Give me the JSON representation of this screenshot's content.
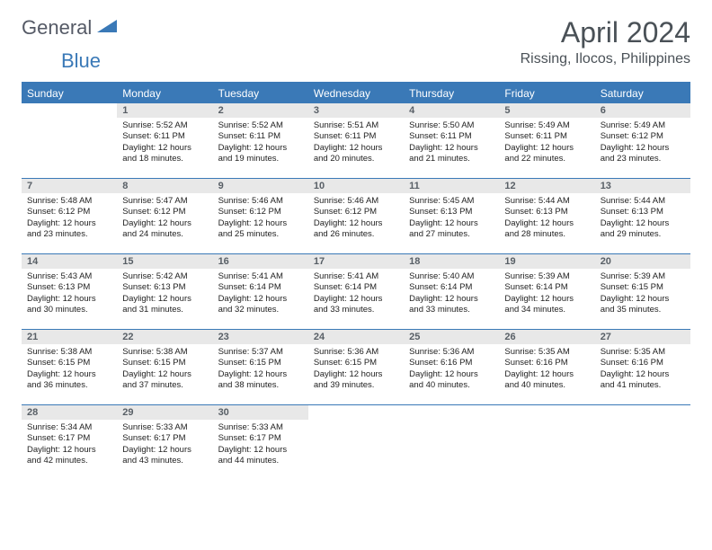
{
  "logo": {
    "general": "General",
    "blue": "Blue"
  },
  "title": "April 2024",
  "location": "Rissing, Ilocos, Philippines",
  "colors": {
    "brand": "#3a79b7",
    "headerText": "#4a5157",
    "dayNumBg": "#e8e8e8"
  },
  "weekdays": [
    "Sunday",
    "Monday",
    "Tuesday",
    "Wednesday",
    "Thursday",
    "Friday",
    "Saturday"
  ],
  "weeks": [
    [
      null,
      {
        "n": "1",
        "l1": "Sunrise: 5:52 AM",
        "l2": "Sunset: 6:11 PM",
        "l3": "Daylight: 12 hours",
        "l4": "and 18 minutes."
      },
      {
        "n": "2",
        "l1": "Sunrise: 5:52 AM",
        "l2": "Sunset: 6:11 PM",
        "l3": "Daylight: 12 hours",
        "l4": "and 19 minutes."
      },
      {
        "n": "3",
        "l1": "Sunrise: 5:51 AM",
        "l2": "Sunset: 6:11 PM",
        "l3": "Daylight: 12 hours",
        "l4": "and 20 minutes."
      },
      {
        "n": "4",
        "l1": "Sunrise: 5:50 AM",
        "l2": "Sunset: 6:11 PM",
        "l3": "Daylight: 12 hours",
        "l4": "and 21 minutes."
      },
      {
        "n": "5",
        "l1": "Sunrise: 5:49 AM",
        "l2": "Sunset: 6:11 PM",
        "l3": "Daylight: 12 hours",
        "l4": "and 22 minutes."
      },
      {
        "n": "6",
        "l1": "Sunrise: 5:49 AM",
        "l2": "Sunset: 6:12 PM",
        "l3": "Daylight: 12 hours",
        "l4": "and 23 minutes."
      }
    ],
    [
      {
        "n": "7",
        "l1": "Sunrise: 5:48 AM",
        "l2": "Sunset: 6:12 PM",
        "l3": "Daylight: 12 hours",
        "l4": "and 23 minutes."
      },
      {
        "n": "8",
        "l1": "Sunrise: 5:47 AM",
        "l2": "Sunset: 6:12 PM",
        "l3": "Daylight: 12 hours",
        "l4": "and 24 minutes."
      },
      {
        "n": "9",
        "l1": "Sunrise: 5:46 AM",
        "l2": "Sunset: 6:12 PM",
        "l3": "Daylight: 12 hours",
        "l4": "and 25 minutes."
      },
      {
        "n": "10",
        "l1": "Sunrise: 5:46 AM",
        "l2": "Sunset: 6:12 PM",
        "l3": "Daylight: 12 hours",
        "l4": "and 26 minutes."
      },
      {
        "n": "11",
        "l1": "Sunrise: 5:45 AM",
        "l2": "Sunset: 6:13 PM",
        "l3": "Daylight: 12 hours",
        "l4": "and 27 minutes."
      },
      {
        "n": "12",
        "l1": "Sunrise: 5:44 AM",
        "l2": "Sunset: 6:13 PM",
        "l3": "Daylight: 12 hours",
        "l4": "and 28 minutes."
      },
      {
        "n": "13",
        "l1": "Sunrise: 5:44 AM",
        "l2": "Sunset: 6:13 PM",
        "l3": "Daylight: 12 hours",
        "l4": "and 29 minutes."
      }
    ],
    [
      {
        "n": "14",
        "l1": "Sunrise: 5:43 AM",
        "l2": "Sunset: 6:13 PM",
        "l3": "Daylight: 12 hours",
        "l4": "and 30 minutes."
      },
      {
        "n": "15",
        "l1": "Sunrise: 5:42 AM",
        "l2": "Sunset: 6:13 PM",
        "l3": "Daylight: 12 hours",
        "l4": "and 31 minutes."
      },
      {
        "n": "16",
        "l1": "Sunrise: 5:41 AM",
        "l2": "Sunset: 6:14 PM",
        "l3": "Daylight: 12 hours",
        "l4": "and 32 minutes."
      },
      {
        "n": "17",
        "l1": "Sunrise: 5:41 AM",
        "l2": "Sunset: 6:14 PM",
        "l3": "Daylight: 12 hours",
        "l4": "and 33 minutes."
      },
      {
        "n": "18",
        "l1": "Sunrise: 5:40 AM",
        "l2": "Sunset: 6:14 PM",
        "l3": "Daylight: 12 hours",
        "l4": "and 33 minutes."
      },
      {
        "n": "19",
        "l1": "Sunrise: 5:39 AM",
        "l2": "Sunset: 6:14 PM",
        "l3": "Daylight: 12 hours",
        "l4": "and 34 minutes."
      },
      {
        "n": "20",
        "l1": "Sunrise: 5:39 AM",
        "l2": "Sunset: 6:15 PM",
        "l3": "Daylight: 12 hours",
        "l4": "and 35 minutes."
      }
    ],
    [
      {
        "n": "21",
        "l1": "Sunrise: 5:38 AM",
        "l2": "Sunset: 6:15 PM",
        "l3": "Daylight: 12 hours",
        "l4": "and 36 minutes."
      },
      {
        "n": "22",
        "l1": "Sunrise: 5:38 AM",
        "l2": "Sunset: 6:15 PM",
        "l3": "Daylight: 12 hours",
        "l4": "and 37 minutes."
      },
      {
        "n": "23",
        "l1": "Sunrise: 5:37 AM",
        "l2": "Sunset: 6:15 PM",
        "l3": "Daylight: 12 hours",
        "l4": "and 38 minutes."
      },
      {
        "n": "24",
        "l1": "Sunrise: 5:36 AM",
        "l2": "Sunset: 6:15 PM",
        "l3": "Daylight: 12 hours",
        "l4": "and 39 minutes."
      },
      {
        "n": "25",
        "l1": "Sunrise: 5:36 AM",
        "l2": "Sunset: 6:16 PM",
        "l3": "Daylight: 12 hours",
        "l4": "and 40 minutes."
      },
      {
        "n": "26",
        "l1": "Sunrise: 5:35 AM",
        "l2": "Sunset: 6:16 PM",
        "l3": "Daylight: 12 hours",
        "l4": "and 40 minutes."
      },
      {
        "n": "27",
        "l1": "Sunrise: 5:35 AM",
        "l2": "Sunset: 6:16 PM",
        "l3": "Daylight: 12 hours",
        "l4": "and 41 minutes."
      }
    ],
    [
      {
        "n": "28",
        "l1": "Sunrise: 5:34 AM",
        "l2": "Sunset: 6:17 PM",
        "l3": "Daylight: 12 hours",
        "l4": "and 42 minutes."
      },
      {
        "n": "29",
        "l1": "Sunrise: 5:33 AM",
        "l2": "Sunset: 6:17 PM",
        "l3": "Daylight: 12 hours",
        "l4": "and 43 minutes."
      },
      {
        "n": "30",
        "l1": "Sunrise: 5:33 AM",
        "l2": "Sunset: 6:17 PM",
        "l3": "Daylight: 12 hours",
        "l4": "and 44 minutes."
      },
      null,
      null,
      null,
      null
    ]
  ]
}
